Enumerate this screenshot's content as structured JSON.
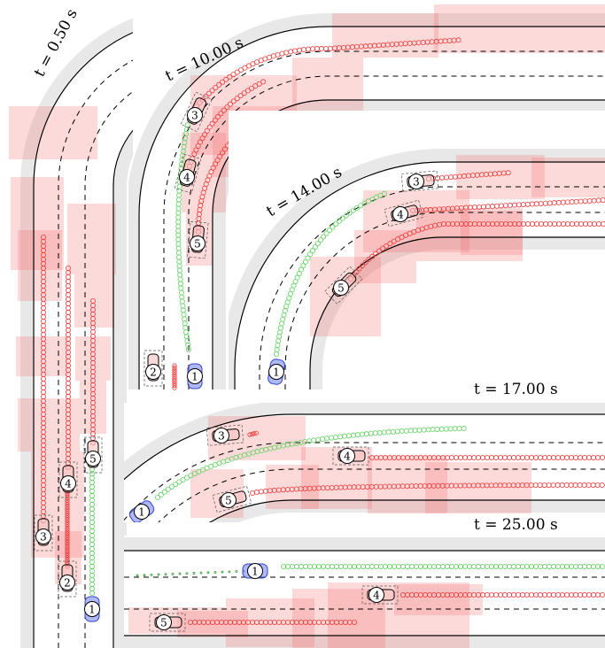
{
  "panels": [
    {
      "time": "t = 0.50 s",
      "vehicles": [
        "1",
        "2",
        "3",
        "4",
        "5"
      ]
    },
    {
      "time": "t = 10.00 s",
      "vehicles": [
        "1",
        "2",
        "3",
        "4",
        "5"
      ]
    },
    {
      "time": "t = 14.00 s",
      "vehicles": [
        "1",
        "3",
        "4",
        "5"
      ]
    },
    {
      "time": "t = 17.00 s",
      "vehicles": [
        "1",
        "3",
        "4",
        "5"
      ]
    },
    {
      "time": "t = 25.00 s",
      "vehicles": [
        "1",
        "4",
        "5"
      ]
    }
  ]
}
